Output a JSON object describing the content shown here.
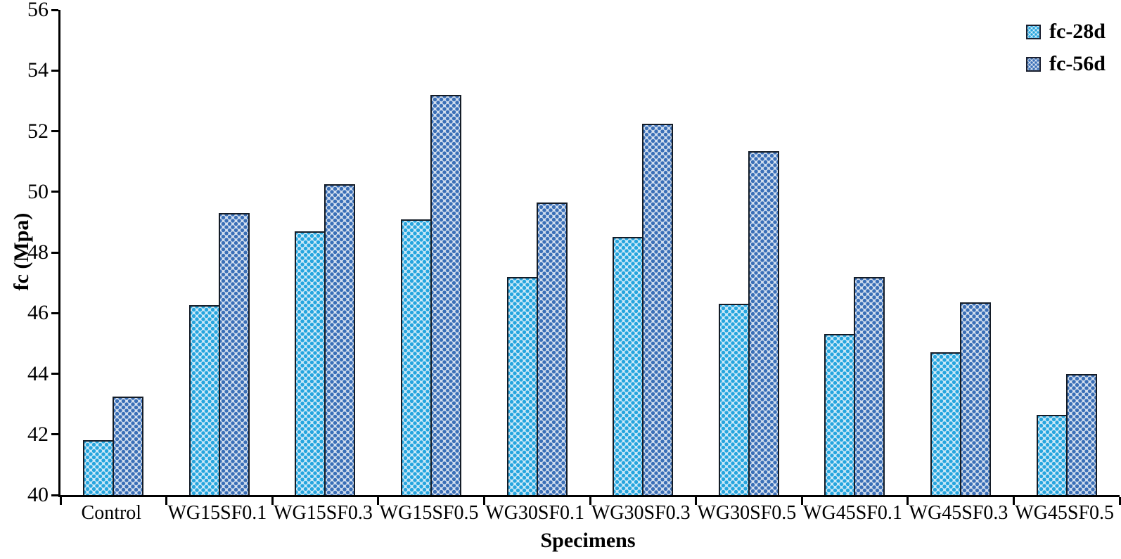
{
  "chart_data": {
    "type": "bar",
    "title": "",
    "xlabel": "Specimens",
    "ylabel": "fc (Mpa)",
    "ylim": [
      40,
      56
    ],
    "ytick_step": 2,
    "yticks": [
      40,
      42,
      44,
      46,
      48,
      50,
      52,
      54,
      56
    ],
    "grid": false,
    "legend_position": "top-right",
    "categories": [
      "Control",
      "WG15SF0.1",
      "WG15SF0.3",
      "WG15SF0.5",
      "WG30SF0.1",
      "WG30SF0.3",
      "WG30SF0.5",
      "WG45SF0.1",
      "WG45SF0.3",
      "WG45SF0.5"
    ],
    "series": [
      {
        "name": "fc-28d",
        "values": [
          41.8,
          46.25,
          48.7,
          49.1,
          47.2,
          48.5,
          46.3,
          45.3,
          44.7,
          42.65
        ],
        "pattern_dot_color": "#25a5de",
        "pattern_bg_color": "#cfeaf8"
      },
      {
        "name": "fc-56d",
        "values": [
          43.25,
          49.3,
          50.25,
          53.2,
          49.65,
          52.25,
          51.35,
          47.2,
          46.35,
          44.0
        ],
        "pattern_dot_color": "#3a6fb7",
        "pattern_bg_color": "#d5e0ef"
      }
    ],
    "axis_color": "#000000",
    "bar_border_color": "#141c27"
  }
}
